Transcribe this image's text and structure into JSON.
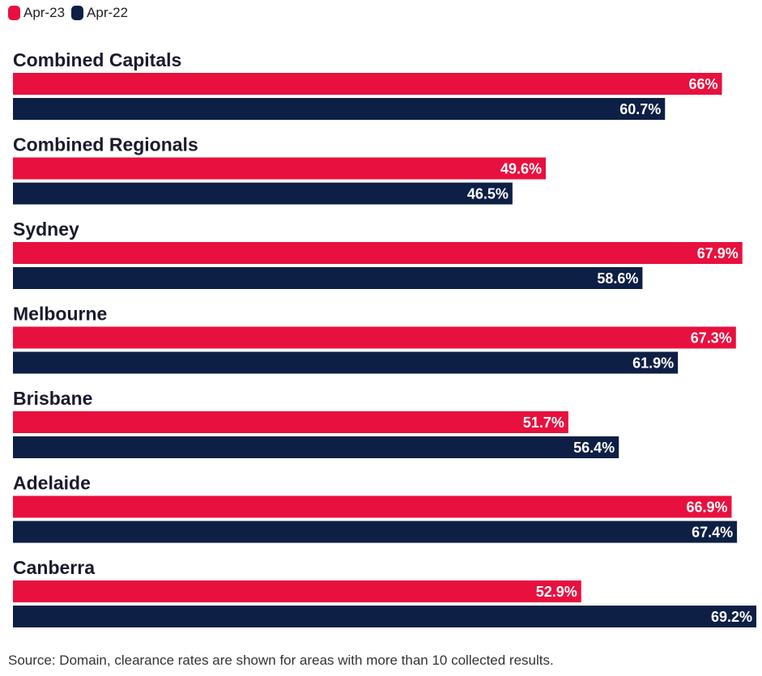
{
  "legend": [
    {
      "label": "Apr-23",
      "color": "#e8103e"
    },
    {
      "label": "Apr-22",
      "color": "#0e1f45"
    }
  ],
  "chart_data": {
    "type": "bar",
    "orientation": "horizontal",
    "categories": [
      "Combined Capitals",
      "Combined Regionals",
      "Sydney",
      "Melbourne",
      "Brisbane",
      "Adelaide",
      "Canberra"
    ],
    "series": [
      {
        "name": "Apr-23",
        "color": "#e8103e",
        "values": [
          66,
          49.6,
          67.9,
          67.3,
          51.7,
          66.9,
          52.9
        ],
        "labels": [
          "66%",
          "49.6%",
          "67.9%",
          "67.3%",
          "51.7%",
          "66.9%",
          "52.9%"
        ]
      },
      {
        "name": "Apr-22",
        "color": "#0e1f45",
        "values": [
          60.7,
          46.5,
          58.6,
          61.9,
          56.4,
          67.4,
          69.2
        ],
        "labels": [
          "60.7%",
          "46.5%",
          "58.6%",
          "61.9%",
          "56.4%",
          "67.4%",
          "69.2%"
        ]
      }
    ],
    "xlim": [
      0,
      69.2
    ],
    "grid": false,
    "legend_position": "top-left"
  },
  "footer": {
    "source": "Source: Domain, clearance rates are shown for areas with more than 10 collected results."
  }
}
